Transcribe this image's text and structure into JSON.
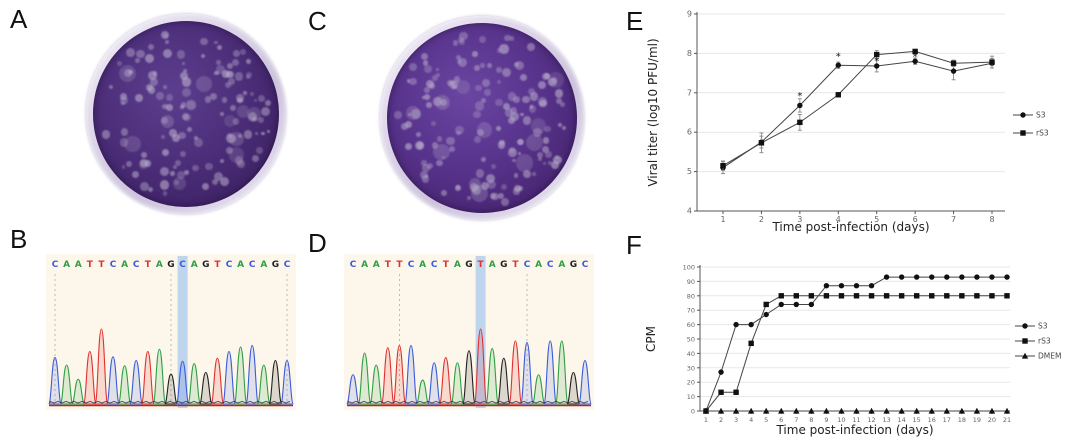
{
  "figure": {
    "panels": {
      "a": {
        "label": "A",
        "type": "plaque-assay-photo"
      },
      "b": {
        "label": "B",
        "type": "sequencing-chromatogram",
        "sequence": "CAATTCACTAGCAGTCACAGC",
        "highlighted_base_index": 12,
        "highlighted_base": "C",
        "peak_heights": [
          0.62,
          0.52,
          0.33,
          0.7,
          1.0,
          0.63,
          0.51,
          0.58,
          0.7,
          0.73,
          0.4,
          0.57,
          0.54,
          0.42,
          0.61,
          0.7,
          0.76,
          0.78,
          0.52,
          0.58,
          0.58
        ],
        "dashed_line_positions": [
          1,
          11,
          21
        ]
      },
      "c": {
        "label": "C",
        "type": "plaque-assay-photo"
      },
      "d": {
        "label": "D",
        "type": "sequencing-chromatogram",
        "sequence": "CAATTCACTAGTAGTCACAGC",
        "highlighted_base_index": 12,
        "highlighted_base": "T",
        "peak_heights": [
          0.39,
          0.68,
          0.52,
          0.75,
          0.78,
          0.78,
          0.32,
          0.55,
          0.62,
          0.55,
          0.71,
          1.0,
          0.74,
          0.61,
          0.84,
          0.82,
          0.39,
          0.84,
          0.84,
          0.42,
          0.58
        ],
        "dashed_line_positions": [
          5,
          16
        ]
      },
      "e": {
        "label": "E"
      },
      "f": {
        "label": "F"
      }
    },
    "base_colors": {
      "A": "#2f9e44",
      "C": "#3b5bdb",
      "G": "#212121",
      "T": "#e03131"
    },
    "chromatogram_style": {
      "background": "#fcf7ea",
      "highlight": "#9ec3ef",
      "baseline_red": "#b02820",
      "baseline_dark": "#2a2f45",
      "dashed_line": "#aaaaaa"
    },
    "dish_style": {
      "plaque_color": "#b5a8c8",
      "rim_color": "#e6dff0",
      "agar_colors_a": [
        "#5c3e8e",
        "#4c2e7a",
        "#3f2366",
        "#371c59"
      ],
      "agar_colors_c": [
        "#6a46a2",
        "#58338c",
        "#482672",
        "#3d1f62"
      ],
      "plaque_count_a": 135,
      "plaque_count_c": 160
    }
  },
  "chart_data": [
    {
      "id": "viral-titer",
      "panel": "E",
      "type": "line",
      "title": "",
      "xlabel": "Time post-infection (days)",
      "ylabel": "Viral titer (log10 PFU/ml)",
      "x": [
        1,
        2,
        3,
        4,
        5,
        6,
        7,
        8
      ],
      "ylim": [
        4,
        9
      ],
      "yticks": [
        4,
        5,
        6,
        7,
        8,
        9
      ],
      "grid": true,
      "legend_position": "right",
      "series": [
        {
          "name": "S3",
          "marker": "circle",
          "values": [
            5.1,
            5.75,
            6.68,
            7.7,
            7.68,
            7.8,
            7.55,
            7.75
          ],
          "errors": [
            0.15,
            0.15,
            0.17,
            0.08,
            0.15,
            0.08,
            0.22,
            0.12
          ]
        },
        {
          "name": "rS3",
          "marker": "square",
          "values": [
            5.15,
            5.73,
            6.25,
            6.95,
            7.97,
            8.05,
            7.75,
            7.78
          ],
          "errors": [
            0.12,
            0.25,
            0.2,
            0.05,
            0.1,
            0.05,
            0.08,
            0.15
          ]
        }
      ],
      "annotations": [
        {
          "x": 3,
          "y": 6.95,
          "text": "*"
        },
        {
          "x": 4,
          "y": 7.95,
          "text": "*"
        },
        {
          "x": 5,
          "y": 7.83,
          "text": "*"
        },
        {
          "x": 6,
          "y": 7.93,
          "text": "*"
        }
      ]
    },
    {
      "id": "cpm",
      "panel": "F",
      "type": "line",
      "title": "",
      "xlabel": "Time post-infection (days)",
      "ylabel": "CPM",
      "x": [
        1,
        2,
        3,
        4,
        5,
        6,
        7,
        8,
        9,
        10,
        11,
        12,
        13,
        14,
        15,
        16,
        17,
        18,
        19,
        20,
        21
      ],
      "ylim": [
        0,
        100
      ],
      "yticks": [
        0,
        10,
        20,
        30,
        40,
        50,
        60,
        70,
        80,
        90,
        100
      ],
      "grid": true,
      "legend_position": "right",
      "series": [
        {
          "name": "S3",
          "marker": "circle",
          "values": [
            0,
            27,
            60,
            60,
            67,
            74,
            74,
            74,
            87,
            87,
            87,
            87,
            93,
            93,
            93,
            93,
            93,
            93,
            93,
            93,
            93
          ]
        },
        {
          "name": "rS3",
          "marker": "square",
          "values": [
            0,
            13,
            13,
            47,
            74,
            80,
            80,
            80,
            80,
            80,
            80,
            80,
            80,
            80,
            80,
            80,
            80,
            80,
            80,
            80,
            80
          ]
        },
        {
          "name": "DMEM",
          "marker": "triangle",
          "values": [
            0,
            0,
            0,
            0,
            0,
            0,
            0,
            0,
            0,
            0,
            0,
            0,
            0,
            0,
            0,
            0,
            0,
            0,
            0,
            0,
            0
          ]
        }
      ],
      "annotations": []
    }
  ]
}
